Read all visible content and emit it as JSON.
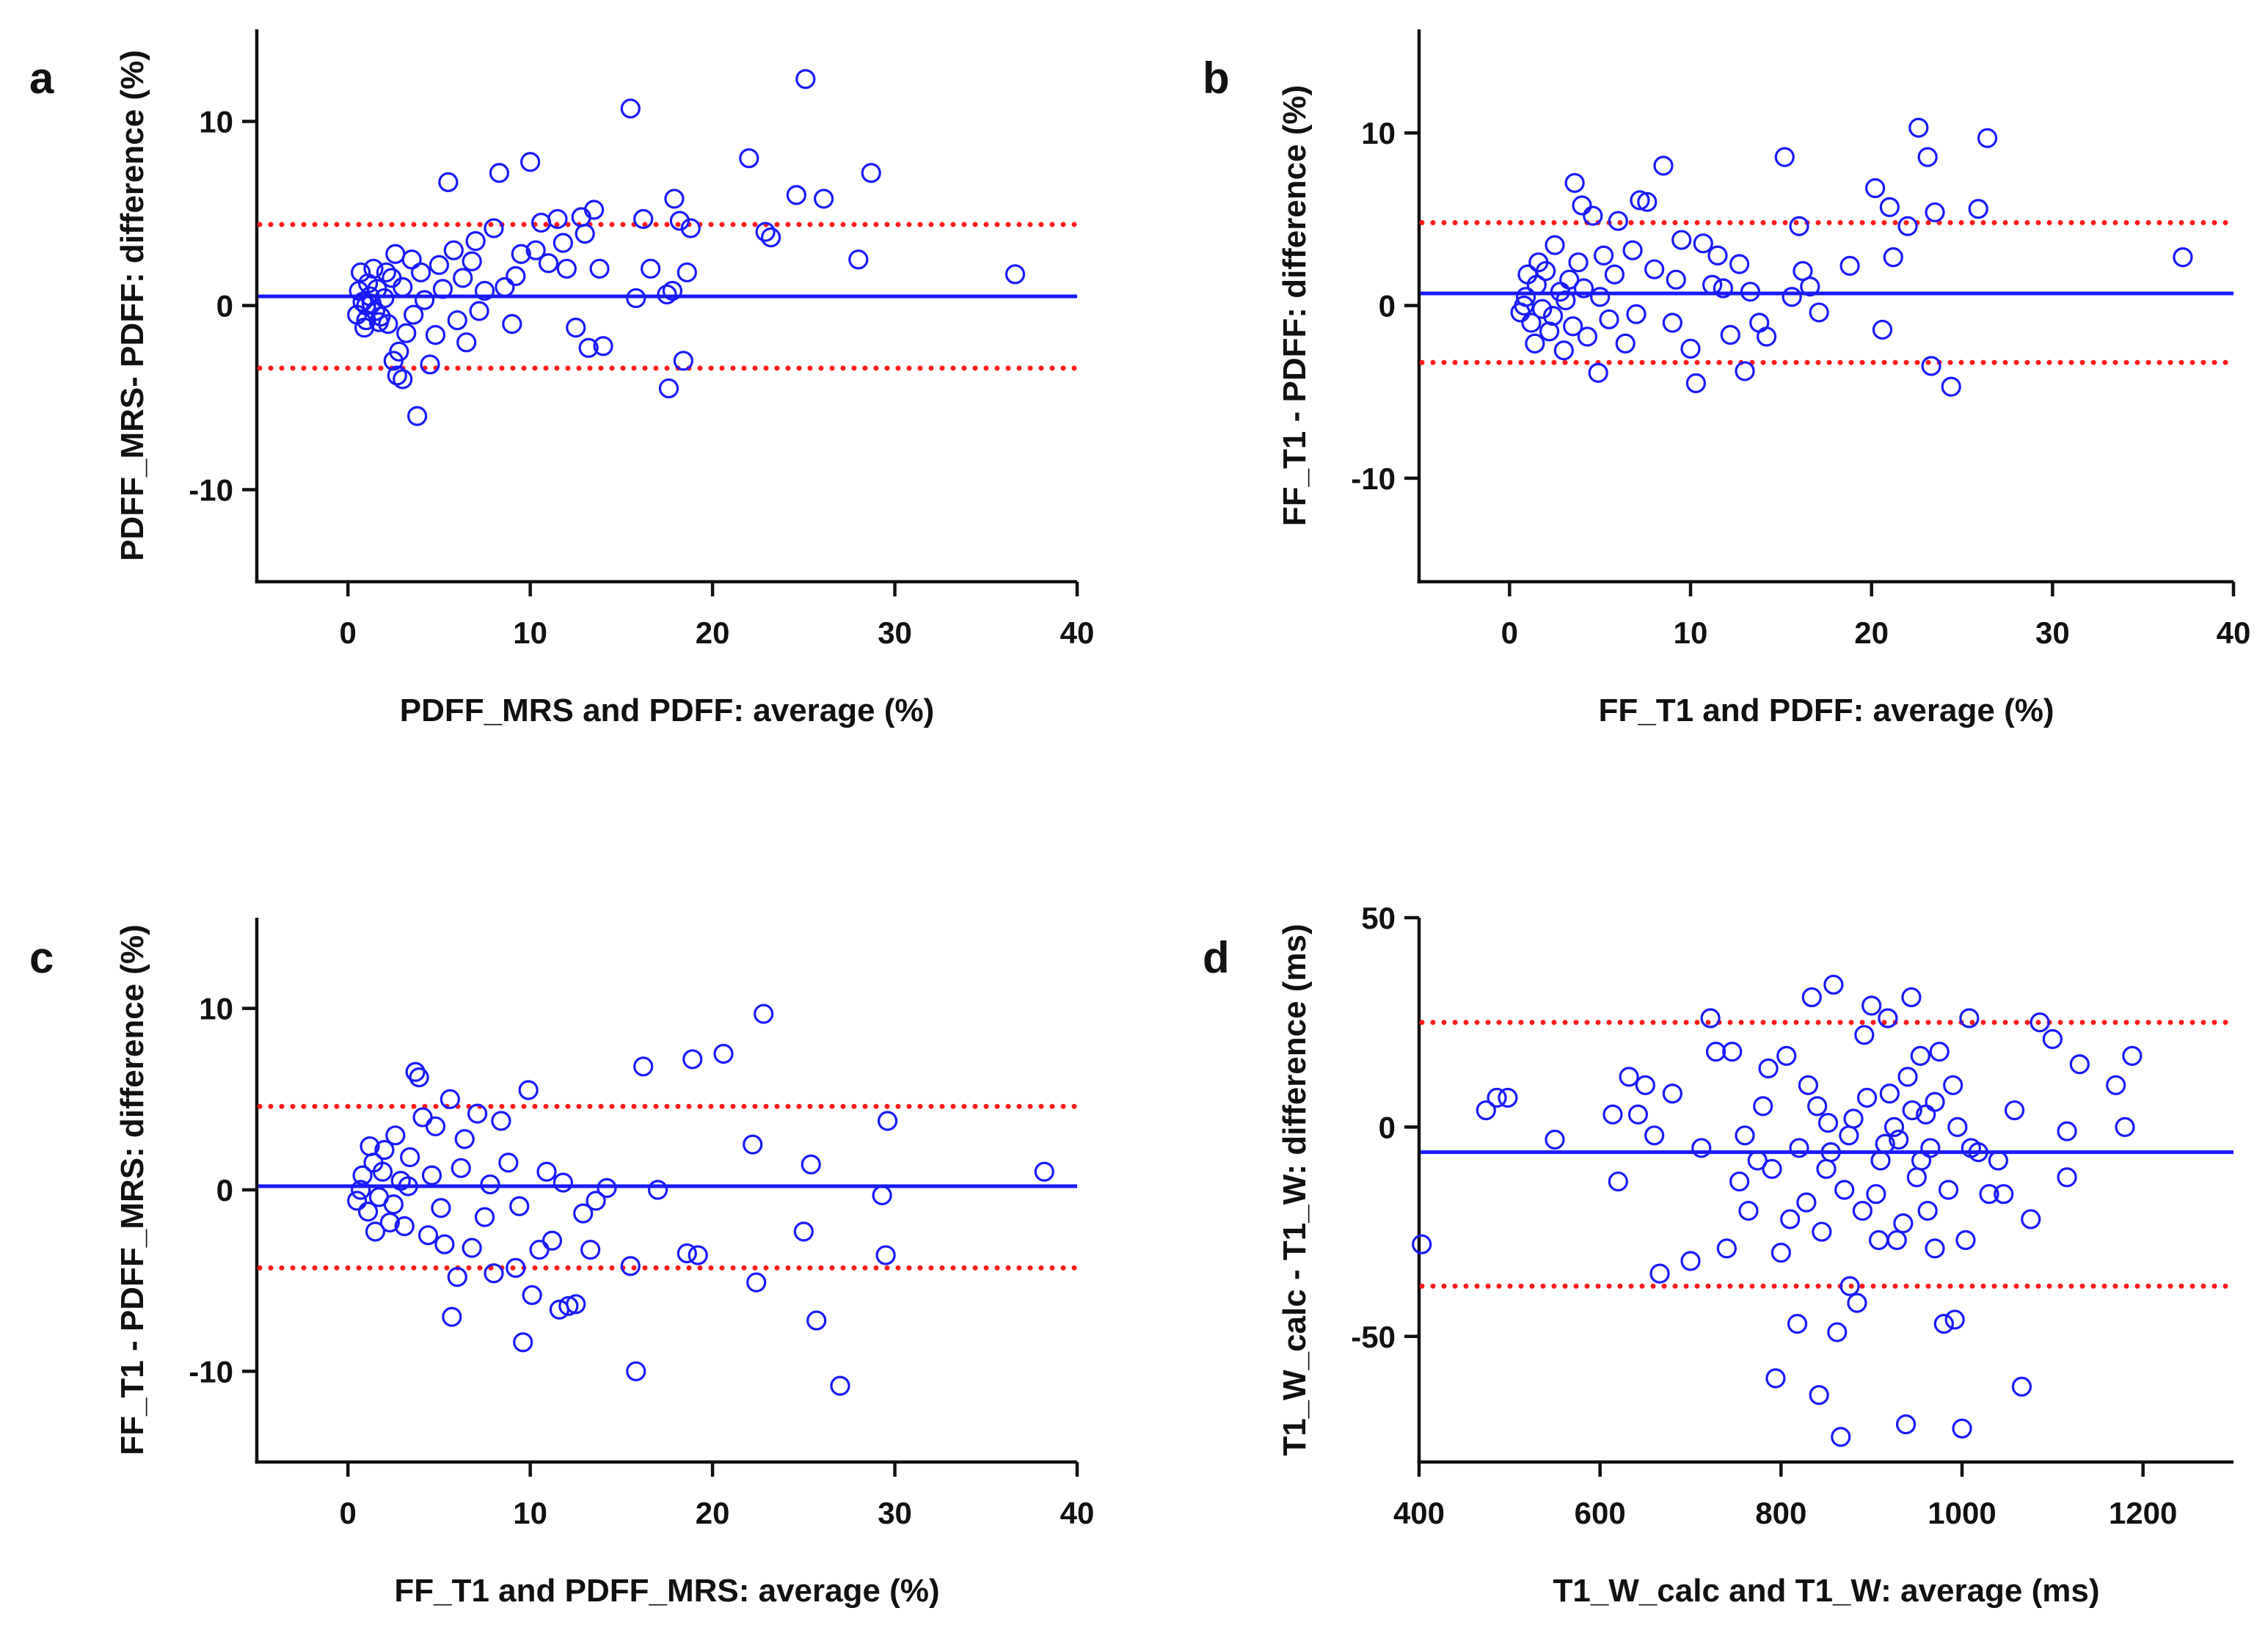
{
  "colors": {
    "points": "#1a1aff",
    "mean_line": "#1a1aff",
    "limits": "#ff1a1a",
    "axes": "#111111"
  },
  "chart_data": [
    {
      "panel": "a",
      "type": "scatter",
      "xlabel": "PDFF_MRS and PDFF:  average (%)",
      "ylabel": "PDFF_MRS- PDFF: difference (%)",
      "xlim": [
        -5,
        40
      ],
      "ylim": [
        -15,
        15
      ],
      "xticks": [
        0,
        10,
        20,
        30,
        40
      ],
      "xtick_labels": [
        "0",
        "10",
        "20",
        "30",
        "40"
      ],
      "yticks": [
        -10,
        0,
        10
      ],
      "ytick_labels": [
        "-10",
        "0",
        "10"
      ],
      "mean": 0.5,
      "limits": [
        4.4,
        -3.4
      ],
      "points": [
        [
          0.5,
          -0.5
        ],
        [
          0.8,
          0.2
        ],
        [
          1.0,
          -0.8
        ],
        [
          1.2,
          0.5
        ],
        [
          1.5,
          -0.3
        ],
        [
          0.6,
          0.8
        ],
        [
          1.1,
          1.2
        ],
        [
          0.9,
          -1.2
        ],
        [
          1.3,
          0.1
        ],
        [
          1.6,
          0.9
        ],
        [
          1.8,
          -0.6
        ],
        [
          2.0,
          0.4
        ],
        [
          2.2,
          -1.0
        ],
        [
          2.4,
          1.5
        ],
        [
          0.7,
          1.8
        ],
        [
          1.4,
          2.0
        ],
        [
          2.6,
          2.8
        ],
        [
          2.8,
          -2.5
        ],
        [
          3.0,
          1.0
        ],
        [
          3.2,
          -1.5
        ],
        [
          2.5,
          -3.0
        ],
        [
          2.7,
          -3.8
        ],
        [
          3.0,
          -4.0
        ],
        [
          3.8,
          -6.0
        ],
        [
          3.5,
          2.5
        ],
        [
          4.0,
          1.8
        ],
        [
          4.5,
          -3.2
        ],
        [
          5.0,
          2.2
        ],
        [
          5.5,
          6.7
        ],
        [
          5.8,
          3.0
        ],
        [
          6.0,
          -0.8
        ],
        [
          6.3,
          1.5
        ],
        [
          6.5,
          -2.0
        ],
        [
          7.0,
          3.5
        ],
        [
          7.5,
          0.8
        ],
        [
          8.0,
          4.2
        ],
        [
          8.3,
          7.2
        ],
        [
          8.6,
          1.0
        ],
        [
          9.0,
          -1.0
        ],
        [
          9.5,
          2.8
        ],
        [
          10.0,
          7.8
        ],
        [
          10.3,
          3.0
        ],
        [
          10.6,
          4.5
        ],
        [
          11.0,
          2.3
        ],
        [
          11.5,
          4.7
        ],
        [
          12.0,
          2.0
        ],
        [
          12.5,
          -1.2
        ],
        [
          12.8,
          4.8
        ],
        [
          13.2,
          -2.3
        ],
        [
          13.5,
          5.2
        ],
        [
          13.8,
          2.0
        ],
        [
          14.0,
          -2.2
        ],
        [
          15.5,
          10.7
        ],
        [
          15.8,
          0.4
        ],
        [
          16.2,
          4.7
        ],
        [
          16.6,
          2.0
        ],
        [
          17.5,
          0.6
        ],
        [
          17.6,
          -4.5
        ],
        [
          17.8,
          0.8
        ],
        [
          17.9,
          5.8
        ],
        [
          18.2,
          4.6
        ],
        [
          18.4,
          -3.0
        ],
        [
          18.6,
          1.8
        ],
        [
          18.8,
          4.2
        ],
        [
          22.0,
          8.0
        ],
        [
          22.9,
          4.0
        ],
        [
          23.2,
          3.7
        ],
        [
          24.6,
          6.0
        ],
        [
          25.1,
          12.3
        ],
        [
          26.1,
          5.8
        ],
        [
          28.0,
          2.5
        ],
        [
          28.7,
          7.2
        ],
        [
          36.6,
          1.7
        ],
        [
          1.0,
          0.0
        ],
        [
          1.7,
          -0.9
        ],
        [
          2.1,
          1.8
        ],
        [
          3.6,
          -0.5
        ],
        [
          4.2,
          0.3
        ],
        [
          4.8,
          -1.6
        ],
        [
          5.2,
          0.9
        ],
        [
          6.8,
          2.4
        ],
        [
          7.2,
          -0.3
        ],
        [
          9.2,
          1.6
        ],
        [
          11.8,
          3.4
        ],
        [
          13.0,
          3.9
        ]
      ]
    },
    {
      "panel": "b",
      "type": "scatter",
      "xlabel": "FF_T1 and PDFF: average (%)",
      "ylabel": "FF_T1 - PDFF: difference (%)",
      "xlim": [
        -5,
        40
      ],
      "ylim": [
        -16,
        16
      ],
      "xticks": [
        0,
        10,
        20,
        30,
        40
      ],
      "xtick_labels": [
        "0",
        "10",
        "20",
        "30",
        "40"
      ],
      "yticks": [
        -10,
        0,
        10
      ],
      "ytick_labels": [
        "-10",
        "0",
        "10"
      ],
      "mean": 0.7,
      "limits": [
        4.8,
        -3.3
      ],
      "points": [
        [
          0.6,
          -0.4
        ],
        [
          0.9,
          0.5
        ],
        [
          1.2,
          -1.0
        ],
        [
          1.5,
          1.2
        ],
        [
          1.8,
          -0.2
        ],
        [
          2.0,
          2.0
        ],
        [
          2.2,
          -1.5
        ],
        [
          2.5,
          3.5
        ],
        [
          2.8,
          0.8
        ],
        [
          1.0,
          1.8
        ],
        [
          1.4,
          -2.2
        ],
        [
          3.0,
          -2.6
        ],
        [
          3.3,
          1.5
        ],
        [
          3.6,
          7.1
        ],
        [
          3.8,
          2.5
        ],
        [
          4.0,
          5.8
        ],
        [
          4.3,
          -1.8
        ],
        [
          4.6,
          5.2
        ],
        [
          4.9,
          -3.9
        ],
        [
          5.2,
          2.9
        ],
        [
          5.5,
          -0.8
        ],
        [
          6.0,
          4.9
        ],
        [
          6.4,
          -2.2
        ],
        [
          6.8,
          3.2
        ],
        [
          7.2,
          6.1
        ],
        [
          7.6,
          6.0
        ],
        [
          8.0,
          2.1
        ],
        [
          8.5,
          8.1
        ],
        [
          9.0,
          -1.0
        ],
        [
          9.5,
          3.8
        ],
        [
          10.0,
          -2.5
        ],
        [
          10.3,
          -4.5
        ],
        [
          10.7,
          3.6
        ],
        [
          11.2,
          1.2
        ],
        [
          11.8,
          1.0
        ],
        [
          12.2,
          -1.7
        ],
        [
          12.7,
          2.4
        ],
        [
          13.0,
          -3.8
        ],
        [
          13.3,
          0.8
        ],
        [
          13.8,
          -1.0
        ],
        [
          14.2,
          -1.8
        ],
        [
          15.2,
          8.6
        ],
        [
          15.6,
          0.5
        ],
        [
          16.0,
          4.6
        ],
        [
          16.2,
          2.0
        ],
        [
          16.6,
          1.1
        ],
        [
          17.1,
          -0.4
        ],
        [
          18.8,
          2.3
        ],
        [
          20.2,
          6.8
        ],
        [
          20.6,
          -1.4
        ],
        [
          21.0,
          5.7
        ],
        [
          21.2,
          2.8
        ],
        [
          22.0,
          4.6
        ],
        [
          22.6,
          10.3
        ],
        [
          23.1,
          8.6
        ],
        [
          23.3,
          -3.5
        ],
        [
          23.5,
          5.4
        ],
        [
          24.4,
          -4.7
        ],
        [
          25.9,
          5.6
        ],
        [
          26.4,
          9.7
        ],
        [
          37.2,
          2.8
        ],
        [
          0.8,
          0.0
        ],
        [
          1.6,
          2.5
        ],
        [
          2.4,
          -0.6
        ],
        [
          3.1,
          0.3
        ],
        [
          3.5,
          -1.2
        ],
        [
          4.1,
          1.0
        ],
        [
          5.0,
          0.5
        ],
        [
          5.8,
          1.8
        ],
        [
          7.0,
          -0.5
        ],
        [
          9.2,
          1.5
        ],
        [
          11.5,
          2.9
        ]
      ]
    },
    {
      "panel": "c",
      "type": "scatter",
      "xlabel": "FF_T1 and PDFF_MRS: average (%)",
      "ylabel": "FF_T1 - PDFF_MRS: difference (%)",
      "xlim": [
        -5,
        40
      ],
      "ylim": [
        -15,
        15
      ],
      "xticks": [
        0,
        10,
        20,
        30,
        40
      ],
      "xtick_labels": [
        "0",
        "10",
        "20",
        "30",
        "40"
      ],
      "yticks": [
        -10,
        0,
        10
      ],
      "ytick_labels": [
        "-10",
        "0",
        "10"
      ],
      "mean": 0.2,
      "limits": [
        4.6,
        -4.3
      ],
      "points": [
        [
          0.5,
          -0.6
        ],
        [
          0.8,
          0.8
        ],
        [
          1.1,
          -1.2
        ],
        [
          1.4,
          1.5
        ],
        [
          1.7,
          -0.4
        ],
        [
          2.0,
          2.2
        ],
        [
          2.3,
          -1.8
        ],
        [
          2.6,
          3.0
        ],
        [
          2.9,
          0.5
        ],
        [
          1.2,
          2.4
        ],
        [
          1.5,
          -2.3
        ],
        [
          3.1,
          -2.0
        ],
        [
          3.4,
          1.8
        ],
        [
          3.7,
          6.5
        ],
        [
          3.9,
          6.2
        ],
        [
          4.1,
          4.0
        ],
        [
          4.4,
          -2.5
        ],
        [
          4.8,
          3.5
        ],
        [
          5.3,
          -3.0
        ],
        [
          5.6,
          5.0
        ],
        [
          5.7,
          -7.0
        ],
        [
          6.0,
          -4.8
        ],
        [
          6.4,
          2.8
        ],
        [
          6.8,
          -3.2
        ],
        [
          7.1,
          4.2
        ],
        [
          7.5,
          -1.5
        ],
        [
          8.0,
          -4.6
        ],
        [
          8.4,
          3.8
        ],
        [
          8.8,
          1.5
        ],
        [
          9.2,
          -4.3
        ],
        [
          9.6,
          -8.4
        ],
        [
          9.9,
          5.5
        ],
        [
          10.1,
          -5.8
        ],
        [
          10.5,
          -3.3
        ],
        [
          10.9,
          1.0
        ],
        [
          11.2,
          -2.8
        ],
        [
          11.6,
          -6.6
        ],
        [
          12.1,
          -6.4
        ],
        [
          12.5,
          -6.3
        ],
        [
          12.9,
          -1.3
        ],
        [
          13.3,
          -3.3
        ],
        [
          13.6,
          -0.6
        ],
        [
          15.5,
          -4.2
        ],
        [
          15.8,
          -10.0
        ],
        [
          16.2,
          6.8
        ],
        [
          17.0,
          0.0
        ],
        [
          18.6,
          -3.5
        ],
        [
          18.9,
          7.2
        ],
        [
          19.2,
          -3.6
        ],
        [
          20.6,
          7.5
        ],
        [
          22.2,
          2.5
        ],
        [
          22.4,
          -5.1
        ],
        [
          22.8,
          9.7
        ],
        [
          25.0,
          -2.3
        ],
        [
          25.4,
          1.4
        ],
        [
          25.7,
          -7.2
        ],
        [
          27.0,
          -10.8
        ],
        [
          29.3,
          -0.3
        ],
        [
          29.6,
          3.8
        ],
        [
          29.5,
          -3.6
        ],
        [
          38.2,
          1.0
        ],
        [
          0.7,
          0.0
        ],
        [
          1.9,
          1.0
        ],
        [
          2.5,
          -0.8
        ],
        [
          3.3,
          0.2
        ],
        [
          4.6,
          0.8
        ],
        [
          5.1,
          -1.0
        ],
        [
          6.2,
          1.2
        ],
        [
          7.8,
          0.3
        ],
        [
          9.4,
          -0.9
        ],
        [
          11.8,
          0.4
        ],
        [
          14.2,
          0.1
        ]
      ]
    },
    {
      "panel": "d",
      "type": "scatter",
      "xlabel": "T1_W_calc and T1_W: average (ms)",
      "ylabel": "T1_W_calc - T1_W: difference (ms)",
      "xlim": [
        400,
        1300
      ],
      "ylim": [
        -80,
        50
      ],
      "xticks": [
        400,
        600,
        800,
        1000,
        1200
      ],
      "xtick_labels": [
        "400",
        "600",
        "800",
        "1000",
        "1200"
      ],
      "yticks": [
        -50,
        0,
        50
      ],
      "ytick_labels": [
        "-50",
        "0",
        "50"
      ],
      "mean": -6,
      "limits": [
        25,
        -38
      ],
      "points": [
        [
          403,
          -28
        ],
        [
          474,
          4
        ],
        [
          486,
          7
        ],
        [
          498,
          7
        ],
        [
          550,
          -3
        ],
        [
          614,
          3
        ],
        [
          620,
          -13
        ],
        [
          632,
          12
        ],
        [
          642,
          3
        ],
        [
          650,
          10
        ],
        [
          660,
          -2
        ],
        [
          666,
          -35
        ],
        [
          680,
          8
        ],
        [
          700,
          -32
        ],
        [
          712,
          -5
        ],
        [
          722,
          26
        ],
        [
          728,
          18
        ],
        [
          740,
          -29
        ],
        [
          746,
          18
        ],
        [
          754,
          -13
        ],
        [
          764,
          -20
        ],
        [
          774,
          -8
        ],
        [
          786,
          14
        ],
        [
          794,
          -60
        ],
        [
          800,
          -30
        ],
        [
          806,
          17
        ],
        [
          818,
          -47
        ],
        [
          828,
          -18
        ],
        [
          834,
          31
        ],
        [
          842,
          -64
        ],
        [
          852,
          1
        ],
        [
          858,
          34
        ],
        [
          862,
          -49
        ],
        [
          866,
          -74
        ],
        [
          876,
          -38
        ],
        [
          884,
          -42
        ],
        [
          892,
          22
        ],
        [
          900,
          29
        ],
        [
          908,
          -27
        ],
        [
          918,
          26
        ],
        [
          928,
          -27
        ],
        [
          938,
          -71
        ],
        [
          944,
          31
        ],
        [
          954,
          17
        ],
        [
          962,
          -20
        ],
        [
          970,
          -29
        ],
        [
          980,
          -47
        ],
        [
          992,
          -46
        ],
        [
          1000,
          -72
        ],
        [
          1004,
          -27
        ],
        [
          1008,
          26
        ],
        [
          1018,
          -6
        ],
        [
          1030,
          -16
        ],
        [
          1046,
          -16
        ],
        [
          1058,
          4
        ],
        [
          1066,
          -62
        ],
        [
          1076,
          -22
        ],
        [
          1086,
          25
        ],
        [
          1100,
          21
        ],
        [
          1116,
          -12
        ],
        [
          1116,
          -1
        ],
        [
          1130,
          15
        ],
        [
          1170,
          10
        ],
        [
          1180,
          0
        ],
        [
          1188,
          17
        ],
        [
          820,
          -5
        ],
        [
          840,
          5
        ],
        [
          850,
          -10
        ],
        [
          870,
          -15
        ],
        [
          880,
          2
        ],
        [
          890,
          -20
        ],
        [
          910,
          -8
        ],
        [
          920,
          8
        ],
        [
          930,
          -3
        ],
        [
          940,
          12
        ],
        [
          950,
          -12
        ],
        [
          960,
          3
        ],
        [
          970,
          6
        ],
        [
          985,
          -15
        ],
        [
          995,
          0
        ],
        [
          760,
          -2
        ],
        [
          780,
          5
        ],
        [
          790,
          -10
        ],
        [
          810,
          -22
        ],
        [
          830,
          10
        ],
        [
          845,
          -25
        ],
        [
          855,
          -6
        ],
        [
          875,
          -2
        ],
        [
          895,
          7
        ],
        [
          905,
          -16
        ],
        [
          915,
          -4
        ],
        [
          925,
          0
        ],
        [
          935,
          -23
        ],
        [
          945,
          4
        ],
        [
          955,
          -8
        ],
        [
          965,
          -5
        ],
        [
          975,
          18
        ],
        [
          990,
          10
        ],
        [
          1010,
          -5
        ],
        [
          1040,
          -8
        ]
      ]
    }
  ]
}
